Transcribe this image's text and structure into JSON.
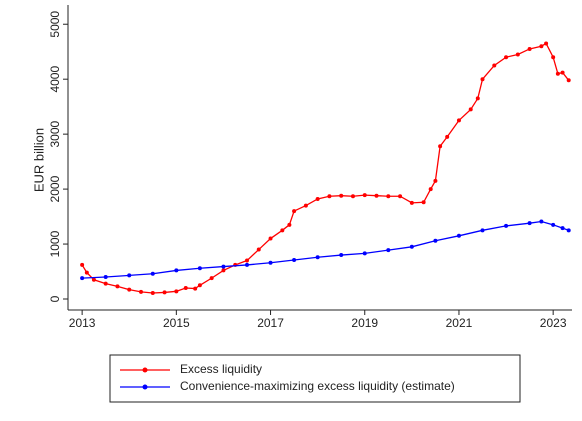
{
  "chart_data": {
    "type": "line",
    "y_label": "EUR billion",
    "xlim": [
      2012.7,
      2023.4
    ],
    "xticks": [
      2013,
      2015,
      2017,
      2019,
      2021,
      2023
    ],
    "ylim": [
      -200,
      5350
    ],
    "yticks": [
      0,
      1000,
      2000,
      3000,
      4000,
      5000
    ],
    "series": [
      {
        "name": "Excess liquidity",
        "color": "#ff0000",
        "x": [
          2013.0,
          2013.1,
          2013.25,
          2013.5,
          2013.75,
          2014.0,
          2014.25,
          2014.5,
          2014.75,
          2015.0,
          2015.2,
          2015.4,
          2015.5,
          2015.75,
          2016.0,
          2016.25,
          2016.5,
          2016.75,
          2017.0,
          2017.25,
          2017.4,
          2017.5,
          2017.75,
          2018.0,
          2018.25,
          2018.5,
          2018.75,
          2019.0,
          2019.25,
          2019.5,
          2019.75,
          2020.0,
          2020.25,
          2020.4,
          2020.5,
          2020.6,
          2020.75,
          2021.0,
          2021.25,
          2021.4,
          2021.5,
          2021.75,
          2022.0,
          2022.25,
          2022.5,
          2022.75,
          2022.85,
          2023.0,
          2023.1,
          2023.2,
          2023.33
        ],
        "values": [
          620,
          480,
          350,
          280,
          230,
          170,
          130,
          110,
          120,
          140,
          200,
          190,
          250,
          380,
          520,
          620,
          700,
          900,
          1100,
          1250,
          1350,
          1600,
          1700,
          1820,
          1870,
          1880,
          1870,
          1890,
          1880,
          1870,
          1870,
          1750,
          1760,
          2000,
          2150,
          2780,
          2950,
          3250,
          3450,
          3650,
          4000,
          4250,
          4400,
          4450,
          4550,
          4600,
          4650,
          4400,
          4100,
          4120,
          3980
        ]
      },
      {
        "name": "Convenience-maximizing excess liquidity (estimate)",
        "color": "#0000ff",
        "x": [
          2013.0,
          2013.5,
          2014.0,
          2014.5,
          2015.0,
          2015.5,
          2016.0,
          2016.5,
          2017.0,
          2017.5,
          2018.0,
          2018.5,
          2019.0,
          2019.5,
          2020.0,
          2020.5,
          2021.0,
          2021.5,
          2022.0,
          2022.5,
          2022.75,
          2023.0,
          2023.2,
          2023.33
        ],
        "values": [
          380,
          400,
          430,
          460,
          520,
          560,
          590,
          620,
          660,
          710,
          760,
          800,
          830,
          890,
          950,
          1060,
          1150,
          1250,
          1330,
          1380,
          1410,
          1350,
          1290,
          1250
        ]
      }
    ]
  }
}
